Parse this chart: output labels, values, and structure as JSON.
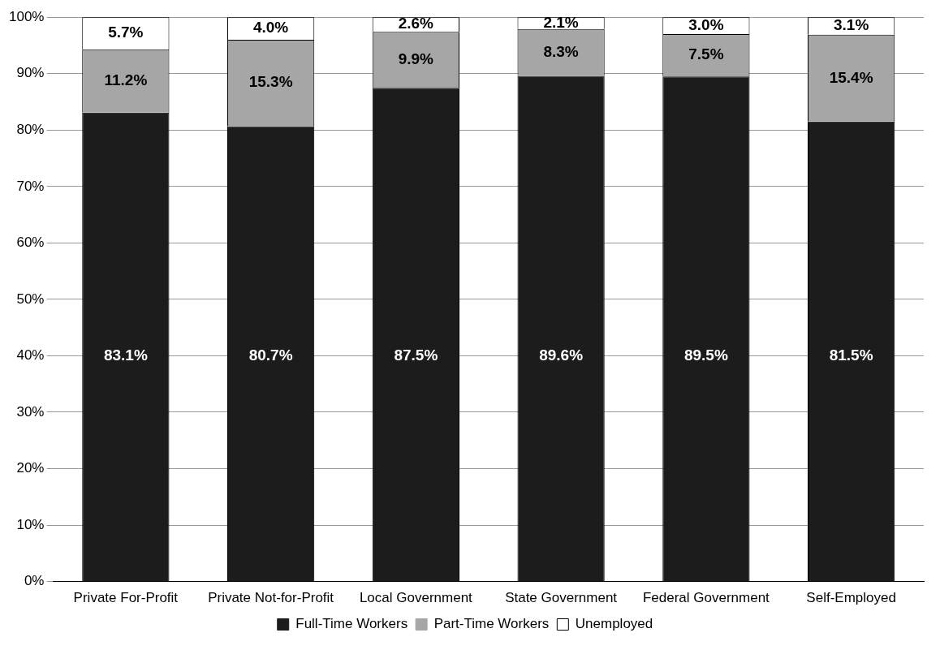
{
  "chart_data": {
    "type": "bar",
    "stacked": true,
    "categories": [
      "Private For-Profit",
      "Private Not-for-Profit",
      "Local Government",
      "State Government",
      "Federal Government",
      "Self-Employed"
    ],
    "series": [
      {
        "name": "Full-Time Workers",
        "color": "#1c1c1c",
        "values": [
          83.1,
          80.7,
          87.5,
          89.6,
          89.5,
          81.5
        ],
        "value_labels": [
          "83.1%",
          "80.7%",
          "87.5%",
          "89.6%",
          "89.5%",
          "81.5%"
        ]
      },
      {
        "name": "Part-Time Workers",
        "color": "#a6a6a6",
        "values": [
          11.2,
          15.3,
          9.9,
          8.3,
          7.5,
          15.4
        ],
        "value_labels": [
          "11.2%",
          "15.3%",
          "9.9%",
          "8.3%",
          "7.5%",
          "15.4%"
        ]
      },
      {
        "name": "Unemployed",
        "color": "#ffffff",
        "values": [
          5.7,
          4.0,
          2.6,
          2.1,
          3.0,
          3.1
        ],
        "value_labels": [
          "5.7%",
          "4.0%",
          "2.6%",
          "2.1%",
          "3.0%",
          "3.1%"
        ]
      }
    ],
    "ylim": [
      0,
      100
    ],
    "yticks": [
      {
        "value": 0,
        "label": "0%"
      },
      {
        "value": 10,
        "label": "10%"
      },
      {
        "value": 20,
        "label": "20%"
      },
      {
        "value": 30,
        "label": "30%"
      },
      {
        "value": 40,
        "label": "40%"
      },
      {
        "value": 50,
        "label": "50%"
      },
      {
        "value": 60,
        "label": "60%"
      },
      {
        "value": 70,
        "label": "70%"
      },
      {
        "value": 80,
        "label": "80%"
      },
      {
        "value": 90,
        "label": "90%"
      },
      {
        "value": 100,
        "label": "100%"
      }
    ],
    "grid": "y",
    "legend": "bottom"
  }
}
